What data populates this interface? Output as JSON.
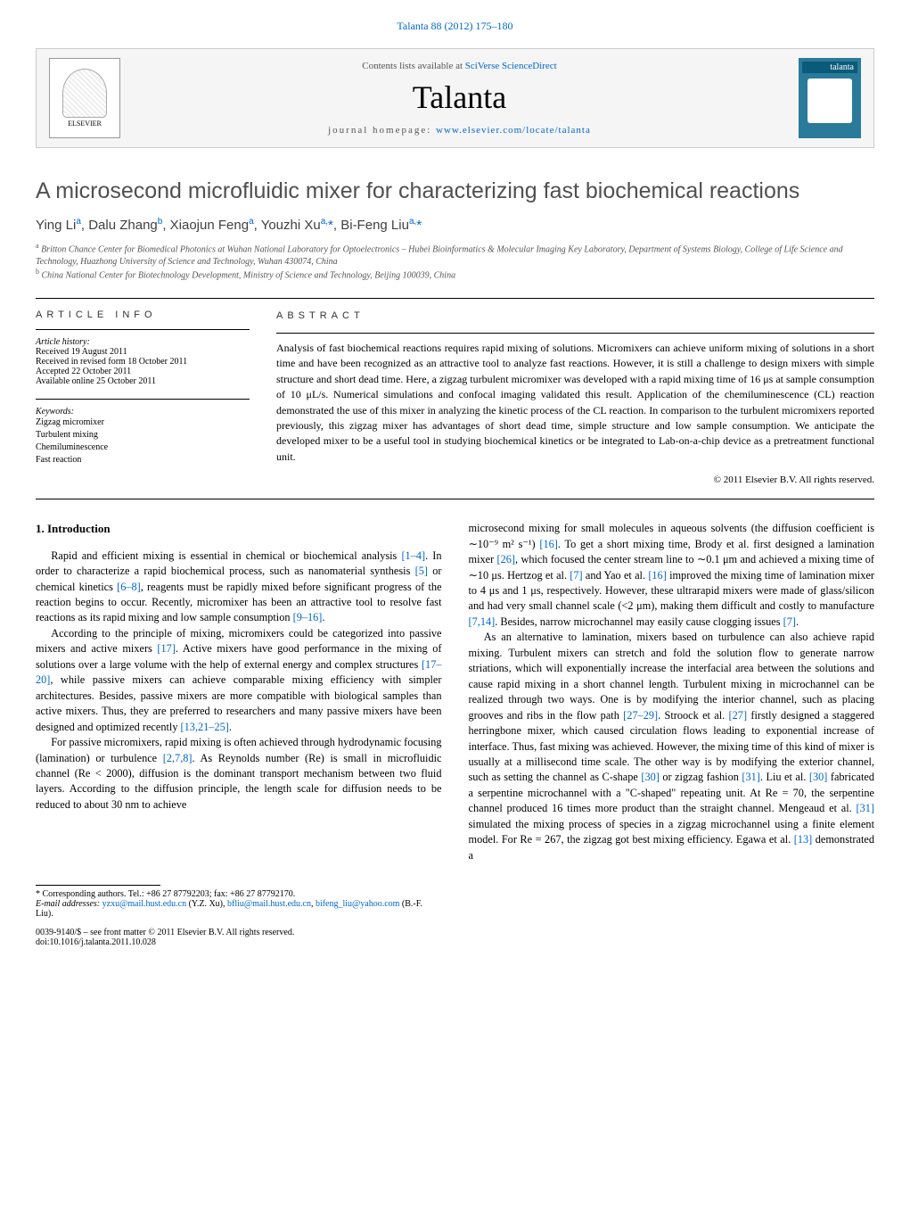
{
  "header": {
    "journal_ref": "Talanta 88 (2012) 175–180",
    "contents_prefix": "Contents lists available at ",
    "contents_link": "SciVerse ScienceDirect",
    "journal_title": "Talanta",
    "homepage_prefix": "journal homepage: ",
    "homepage_link": "www.elsevier.com/locate/talanta",
    "elsevier_label": "ELSEVIER",
    "cover_label": "talanta"
  },
  "article": {
    "title": "A microsecond microfluidic mixer for characterizing fast biochemical reactions",
    "authors_html": "Ying Li<sup>a</sup>, Dalu Zhang<sup>b</sup>, Xiaojun Feng<sup>a</sup>, Youzhi Xu<sup>a,</sup><span class='star'>*</span>, Bi-Feng Liu<sup>a,</sup><span class='star'>*</span>",
    "affiliations": [
      "a Britton Chance Center for Biomedical Photonics at Wuhan National Laboratory for Optoelectronics – Hubei Bioinformatics & Molecular Imaging Key Laboratory, Department of Systems Biology, College of Life Science and Technology, Huazhong University of Science and Technology, Wuhan 430074, China",
      "b China National Center for Biotechnology Development, Ministry of Science and Technology, Beijing 100039, China"
    ]
  },
  "info": {
    "label": "ARTICLE INFO",
    "history_label": "Article history:",
    "history": [
      "Received 19 August 2011",
      "Received in revised form 18 October 2011",
      "Accepted 22 October 2011",
      "Available online 25 October 2011"
    ],
    "keywords_label": "Keywords:",
    "keywords": [
      "Zigzag micromixer",
      "Turbulent mixing",
      "Chemiluminescence",
      "Fast reaction"
    ]
  },
  "abstract": {
    "label": "ABSTRACT",
    "text": "Analysis of fast biochemical reactions requires rapid mixing of solutions. Micromixers can achieve uniform mixing of solutions in a short time and have been recognized as an attractive tool to analyze fast reactions. However, it is still a challenge to design mixers with simple structure and short dead time. Here, a zigzag turbulent micromixer was developed with a rapid mixing time of 16 μs at sample consumption of 10 μL/s. Numerical simulations and confocal imaging validated this result. Application of the chemiluminescence (CL) reaction demonstrated the use of this mixer in analyzing the kinetic process of the CL reaction. In comparison to the turbulent micromixers reported previously, this zigzag mixer has advantages of short dead time, simple structure and low sample consumption. We anticipate the developed mixer to be a useful tool in studying biochemical kinetics or be integrated to Lab-on-a-chip device as a pretreatment functional unit.",
    "copyright": "© 2011 Elsevier B.V. All rights reserved."
  },
  "body": {
    "heading": "1. Introduction",
    "left_paras": [
      "Rapid and efficient mixing is essential in chemical or biochemical analysis <span class='cite'>[1–4]</span>. In order to characterize a rapid biochemical process, such as nanomaterial synthesis <span class='cite'>[5]</span> or chemical kinetics <span class='cite'>[6–8]</span>, reagents must be rapidly mixed before significant progress of the reaction begins to occur. Recently, micromixer has been an attractive tool to resolve fast reactions as its rapid mixing and low sample consumption <span class='cite'>[9–16]</span>.",
      "According to the principle of mixing, micromixers could be categorized into passive mixers and active mixers <span class='cite'>[17]</span>. Active mixers have good performance in the mixing of solutions over a large volume with the help of external energy and complex structures <span class='cite'>[17–20]</span>, while passive mixers can achieve comparable mixing efficiency with simpler architectures. Besides, passive mixers are more compatible with biological samples than active mixers. Thus, they are preferred to researchers and many passive mixers have been designed and optimized recently <span class='cite'>[13,21–25]</span>.",
      "For passive micromixers, rapid mixing is often achieved through hydrodynamic focusing (lamination) or turbulence <span class='cite'>[2,7,8]</span>. As Reynolds number (Re) is small in microfluidic channel (Re < 2000), diffusion is the dominant transport mechanism between two fluid layers. According to the diffusion principle, the length scale for diffusion needs to be reduced to about 30 nm to achieve"
    ],
    "right_paras": [
      "microsecond mixing for small molecules in aqueous solvents (the diffusion coefficient is ∼10⁻⁹ m² s⁻¹) <span class='cite'>[16]</span>. To get a short mixing time, Brody et al. first designed a lamination mixer <span class='cite'>[26]</span>, which focused the center stream line to ∼0.1 μm and achieved a mixing time of ∼10 μs. Hertzog et al. <span class='cite'>[7]</span> and Yao et al. <span class='cite'>[16]</span> improved the mixing time of lamination mixer to 4 μs and 1 μs, respectively. However, these ultrarapid mixers were made of glass/silicon and had very small channel scale (<2 μm), making them difficult and costly to manufacture <span class='cite'>[7,14]</span>. Besides, narrow microchannel may easily cause clogging issues <span class='cite'>[7]</span>.",
      "As an alternative to lamination, mixers based on turbulence can also achieve rapid mixing. Turbulent mixers can stretch and fold the solution flow to generate narrow striations, which will exponentially increase the interfacial area between the solutions and cause rapid mixing in a short channel length. Turbulent mixing in microchannel can be realized through two ways. One is by modifying the interior channel, such as placing grooves and ribs in the flow path <span class='cite'>[27–29]</span>. Stroock et al. <span class='cite'>[27]</span> firstly designed a staggered herringbone mixer, which caused circulation flows leading to exponential increase of interface. Thus, fast mixing was achieved. However, the mixing time of this kind of mixer is usually at a millisecond time scale. The other way is by modifying the exterior channel, such as setting the channel as C-shape <span class='cite'>[30]</span> or zigzag fashion <span class='cite'>[31]</span>. Liu et al. <span class='cite'>[30]</span> fabricated a serpentine microchannel with a \"C-shaped\" repeating unit. At Re = 70, the serpentine channel produced 16 times more product than the straight channel. Mengeaud et al. <span class='cite'>[31]</span> simulated the mixing process of species in a zigzag microchannel using a finite element model. For Re = 267, the zigzag got best mixing efficiency. Egawa et al. <span class='cite'>[13]</span> demonstrated a"
    ]
  },
  "footer": {
    "corr_label": "* Corresponding authors. Tel.: +86 27 87792203; fax: +86 27 87792170.",
    "email_label": "E-mail addresses: ",
    "emails": [
      {
        "addr": "yzxu@mail.hust.edu.cn",
        "who": " (Y.Z. Xu), "
      },
      {
        "addr": "bfliu@mail.hust.edu.cn",
        "who": ", "
      },
      {
        "addr": "bifeng_liu@yahoo.com",
        "who": " (B.-F. Liu)."
      }
    ],
    "issn": "0039-9140/$ – see front matter © 2011 Elsevier B.V. All rights reserved.",
    "doi": "doi:10.1016/j.talanta.2011.10.028"
  }
}
